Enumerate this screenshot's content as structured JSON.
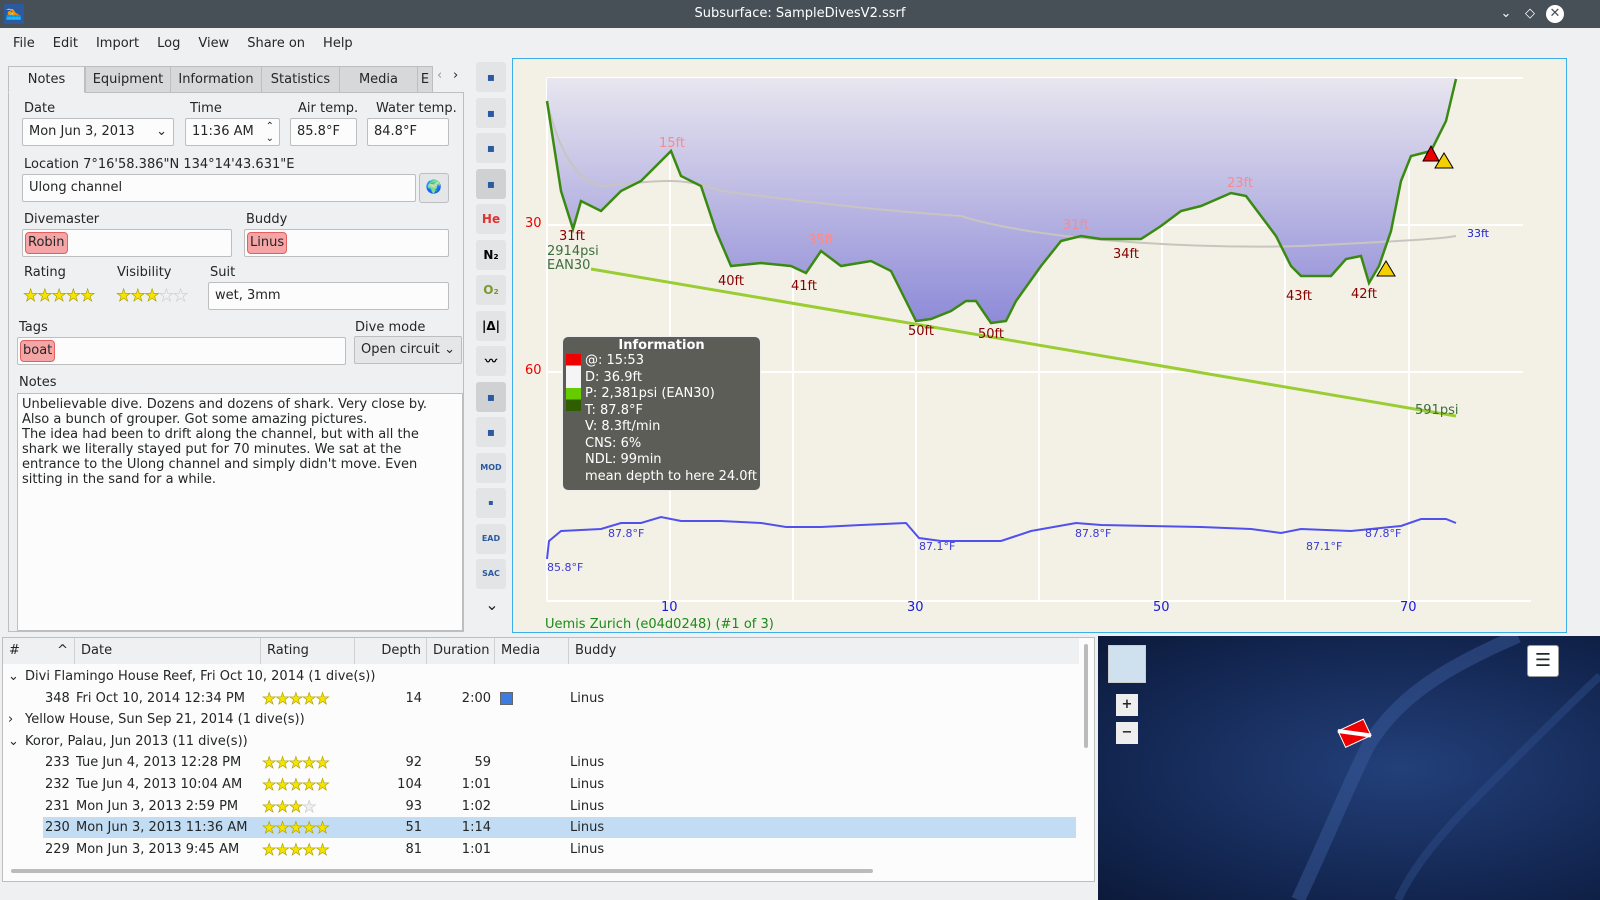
{
  "window": {
    "title": "Subsurface: SampleDivesV2.ssrf"
  },
  "menu": [
    "File",
    "Edit",
    "Import",
    "Log",
    "View",
    "Share on",
    "Help"
  ],
  "tabs": [
    "Notes",
    "Equipment",
    "Information",
    "Statistics",
    "Media",
    "E"
  ],
  "notes": {
    "date_label": "Date",
    "date": "Mon Jun 3, 2013",
    "time_label": "Time",
    "time": "11:36 AM",
    "air_label": "Air temp.",
    "air": "85.8°F",
    "water_label": "Water temp.",
    "water": "84.8°F",
    "location_label": "Location 7°16'58.386\"N 134°14'43.631\"E",
    "location": "Ulong channel",
    "divemaster_label": "Divemaster",
    "divemaster": "Robin",
    "buddy_label": "Buddy",
    "buddy": "Linus",
    "rating_label": "Rating",
    "rating": 5,
    "visibility_label": "Visibility",
    "visibility": 3,
    "suit_label": "Suit",
    "suit": "wet, 3mm",
    "tags_label": "Tags",
    "tag": "boat",
    "divemode_label": "Dive mode",
    "divemode": "Open circuit",
    "notes_label": "Notes",
    "notes_text": "Unbelievable dive. Dozens and dozens of shark. Very close by. Also a bunch of grouper. Got some amazing pictures.\nThe idea had been to drift along the channel, but with all the shark we literally stayed put for 70 minutes. We sat at the entrance to the Ulong channel and simply didn't move. Even sitting in the sand for a while."
  },
  "toolbar": [
    "dive-computer-icon",
    "ceiling-icon",
    "calc-ceiling-icon",
    "deco-tissue-icon",
    "he-icon",
    "n2-icon",
    "o2-icon",
    "ruler-icon",
    "scale-graph-icon",
    "map-photo-icon",
    "tank-switch-icon",
    "mod-icon",
    "ndl-tts-icon",
    "ead-icon",
    "sac-icon"
  ],
  "profile": {
    "y_ticks": [
      "30",
      "60"
    ],
    "x_ticks": [
      "10",
      "30",
      "50",
      "70"
    ],
    "depth_labels": [
      "15ft",
      "31ft",
      "40ft",
      "35ft",
      "41ft",
      "50ft",
      "50ft",
      "31ft",
      "34ft",
      "23ft",
      "43ft",
      "42ft",
      "33ft"
    ],
    "pressure_start": "2914psi",
    "gas": "EAN30",
    "pressure_end": "591psi",
    "temps": [
      "85.8°F",
      "87.8°F",
      "87.1°F",
      "87.8°F",
      "87.1°F",
      "87.8°F"
    ],
    "computer": "Uemis Zurich (e04d0248) (#1 of 3)",
    "info": {
      "title": "Information",
      "lines": [
        "@: 15:53",
        "D: 36.9ft",
        "P: 2,381psi (EAN30)",
        "T: 87.8°F",
        "V: 8.3ft/min",
        "CNS: 6%",
        "NDL: 99min",
        "mean depth to here 24.0ft"
      ]
    }
  },
  "divelist": {
    "columns": [
      "#",
      "Date",
      "Rating",
      "Depth",
      "Duration",
      "Media",
      "Buddy"
    ],
    "rows": [
      {
        "trip": true,
        "open": true,
        "text": "Divi Flamingo House Reef, Fri Oct 10, 2014 (1 dive(s))"
      },
      {
        "num": "348",
        "date": "Fri Oct 10, 2014 12:34 PM",
        "rating": 5,
        "depth": "14",
        "duration": "2:00",
        "media": true,
        "buddy": "Linus"
      },
      {
        "trip": true,
        "open": false,
        "text": "Yellow House, Sun Sep 21, 2014 (1 dive(s))"
      },
      {
        "trip": true,
        "open": true,
        "text": "Koror, Palau, Jun 2013 (11 dive(s))"
      },
      {
        "num": "233",
        "date": "Tue Jun 4, 2013 12:28 PM",
        "rating": 5,
        "depth": "92",
        "duration": "59",
        "buddy": "Linus"
      },
      {
        "num": "232",
        "date": "Tue Jun 4, 2013 10:04 AM",
        "rating": 5,
        "depth": "104",
        "duration": "1:01",
        "buddy": "Linus"
      },
      {
        "num": "231",
        "date": "Mon Jun 3, 2013 2:59 PM",
        "rating": 3,
        "depth": "93",
        "duration": "1:02",
        "buddy": "Linus"
      },
      {
        "num": "230",
        "date": "Mon Jun 3, 2013 11:36 AM",
        "rating": 5,
        "depth": "51",
        "duration": "1:14",
        "buddy": "Linus",
        "selected": true
      },
      {
        "num": "229",
        "date": "Mon Jun 3, 2013 9:45 AM",
        "rating": 5,
        "depth": "81",
        "duration": "1:01",
        "buddy": "Linus"
      }
    ]
  },
  "map": {
    "zoom_in": "+",
    "zoom_out": "−"
  }
}
